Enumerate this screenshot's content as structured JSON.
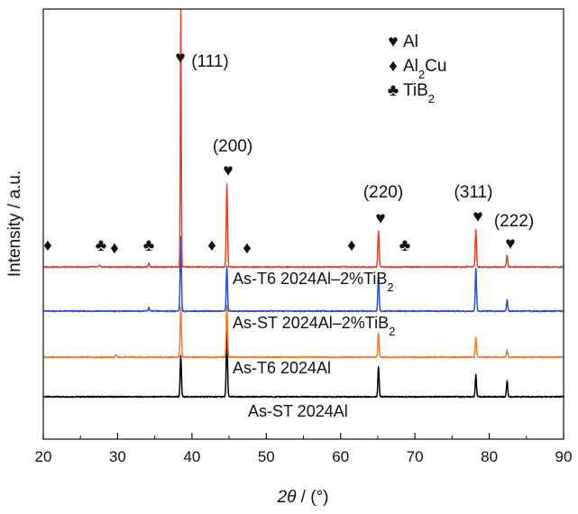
{
  "chart_data": {
    "type": "line",
    "title": "",
    "xlabel": "2θ / (°)",
    "xlabel_parts": {
      "symbol": "2θ",
      "unit": " / (°)"
    },
    "ylabel": "Intensity / a.u.",
    "xlim": [
      20,
      90
    ],
    "xticks": [
      20,
      30,
      40,
      50,
      60,
      70,
      80,
      90
    ],
    "y_ticks_shown": false,
    "grid": false,
    "legend_placement": "top-right",
    "legend": [
      {
        "symbol": "♥",
        "phase": "Al",
        "parts": [
          {
            "t": "Al"
          }
        ]
      },
      {
        "symbol": "♦",
        "phase": "Al2Cu",
        "parts": [
          {
            "t": "Al"
          },
          {
            "t": "2",
            "sub": true
          },
          {
            "t": "Cu"
          }
        ]
      },
      {
        "symbol": "♣",
        "phase": "TiB2",
        "parts": [
          {
            "t": "TiB"
          },
          {
            "t": "2",
            "sub": true
          }
        ]
      }
    ],
    "peak_labels": [
      {
        "text": "(111)",
        "two_theta": 38.5
      },
      {
        "text": "(200)",
        "two_theta": 44.7
      },
      {
        "text": "(220)",
        "two_theta": 65.1
      },
      {
        "text": "(311)",
        "two_theta": 78.2
      },
      {
        "text": "(222)",
        "two_theta": 82.4
      }
    ],
    "phase_markers": [
      {
        "symbol": "♥",
        "phase": "Al",
        "two_theta": 38.5
      },
      {
        "symbol": "♥",
        "phase": "Al",
        "two_theta": 44.7
      },
      {
        "symbol": "♥",
        "phase": "Al",
        "two_theta": 65.1
      },
      {
        "symbol": "♥",
        "phase": "Al",
        "two_theta": 78.2
      },
      {
        "symbol": "♥",
        "phase": "Al",
        "two_theta": 82.4
      },
      {
        "symbol": "♦",
        "phase": "Al2Cu",
        "two_theta": 20.6
      },
      {
        "symbol": "♦",
        "phase": "Al2Cu",
        "two_theta": 29.8
      },
      {
        "symbol": "♦",
        "phase": "Al2Cu",
        "two_theta": 42.6
      },
      {
        "symbol": "♦",
        "phase": "Al2Cu",
        "two_theta": 47.3
      },
      {
        "symbol": "♦",
        "phase": "Al2Cu",
        "two_theta": 61.3
      },
      {
        "symbol": "♣",
        "phase": "TiB2",
        "two_theta": 27.6
      },
      {
        "symbol": "♣",
        "phase": "TiB2",
        "two_theta": 34.2
      },
      {
        "symbol": "♣",
        "phase": "TiB2",
        "two_theta": 68.3
      }
    ],
    "series": [
      {
        "label": "As-ST 2024Al",
        "label_parts": [
          {
            "t": "As-ST 2024Al"
          }
        ],
        "color": "#000000",
        "peaks": [
          {
            "two_theta": 38.5,
            "intensity": 45
          },
          {
            "two_theta": 44.7,
            "intensity": 72
          },
          {
            "two_theta": 65.1,
            "intensity": 33
          },
          {
            "two_theta": 78.2,
            "intensity": 24
          },
          {
            "two_theta": 82.4,
            "intensity": 18
          }
        ]
      },
      {
        "label": "As-T6 2024Al",
        "label_parts": [
          {
            "t": "As-T6 2024Al"
          }
        ],
        "color": "#f07a2a",
        "peaks": [
          {
            "two_theta": 38.5,
            "intensity": 55
          },
          {
            "two_theta": 44.7,
            "intensity": 58
          },
          {
            "two_theta": 65.1,
            "intensity": 26
          },
          {
            "two_theta": 78.2,
            "intensity": 22
          },
          {
            "two_theta": 82.4,
            "intensity": 8
          },
          {
            "two_theta": 29.8,
            "intensity": 2
          }
        ]
      },
      {
        "label": "As-ST 2024Al-2%TiB2",
        "label_parts": [
          {
            "t": "As-ST 2024Al"
          },
          {
            "t": "–2%TiB"
          },
          {
            "t": "2",
            "sub": true
          }
        ],
        "color": "#2b4fc9",
        "peaks": [
          {
            "two_theta": 38.5,
            "intensity": 82
          },
          {
            "two_theta": 44.7,
            "intensity": 50
          },
          {
            "two_theta": 65.1,
            "intensity": 40
          },
          {
            "two_theta": 78.2,
            "intensity": 48
          },
          {
            "two_theta": 82.4,
            "intensity": 12
          },
          {
            "two_theta": 34.2,
            "intensity": 4
          }
        ]
      },
      {
        "label": "As-T6 2024Al-2%TiB2",
        "label_parts": [
          {
            "t": "As-T6 2024Al"
          },
          {
            "t": "–2%TiB"
          },
          {
            "t": "2",
            "sub": true
          }
        ],
        "color": "#e2432f",
        "peaks": [
          {
            "two_theta": 38.5,
            "intensity": 285
          },
          {
            "two_theta": 44.7,
            "intensity": 92
          },
          {
            "two_theta": 65.1,
            "intensity": 40
          },
          {
            "two_theta": 78.2,
            "intensity": 42
          },
          {
            "two_theta": 82.4,
            "intensity": 13
          },
          {
            "two_theta": 34.2,
            "intensity": 4
          },
          {
            "two_theta": 27.6,
            "intensity": 2
          }
        ]
      }
    ]
  }
}
